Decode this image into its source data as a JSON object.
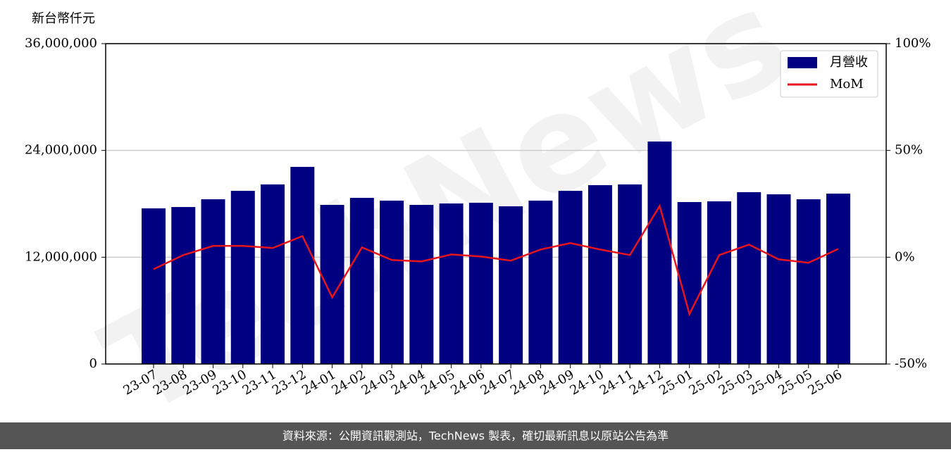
{
  "chart_data": {
    "type": "bar_line",
    "y_label": "新台幣仟元",
    "watermark": "TechNews",
    "footer": "資料來源：公開資訊觀測站，TechNews 製表，確切最新訊息以原站公告為準",
    "categories": [
      "23-07",
      "23-08",
      "23-09",
      "23-10",
      "23-11",
      "23-12",
      "24-01",
      "24-02",
      "24-03",
      "24-04",
      "24-05",
      "24-06",
      "24-07",
      "24-08",
      "24-09",
      "24-10",
      "24-11",
      "24-12",
      "25-01",
      "25-02",
      "25-03",
      "25-04",
      "25-05",
      "25-06"
    ],
    "series": [
      {
        "name": "月營收",
        "type": "bar",
        "color": "#000080",
        "values": [
          17490000,
          17640000,
          18510000,
          19460000,
          20180000,
          22150000,
          17880000,
          18670000,
          18360000,
          17880000,
          18040000,
          18120000,
          17720000,
          18360000,
          19460000,
          20100000,
          20180000,
          25000000,
          18200000,
          18280000,
          19310000,
          19070000,
          18510000,
          19150000
        ]
      },
      {
        "name": "MoM",
        "type": "line",
        "axis": "y2",
        "color": "#e8141b",
        "values": [
          -5.6,
          1.0,
          5.3,
          5.3,
          4.3,
          9.9,
          -18.8,
          4.6,
          -1.3,
          -2.0,
          1.3,
          0.3,
          -1.6,
          3.6,
          6.6,
          3.6,
          1.0,
          24.0,
          -26.6,
          1.0,
          5.9,
          -1.0,
          -2.6,
          3.9
        ]
      }
    ],
    "ylim": [
      0,
      36000000
    ],
    "yticks": [
      0,
      {
        "value": 12000000,
        "label": "12,000,000"
      },
      {
        "value": 24000000,
        "label": "24,000,000"
      },
      {
        "value": 36000000,
        "label": "36,000,000"
      }
    ],
    "y2lim": [
      -50,
      100
    ],
    "y2ticks": [
      {
        "value": -50,
        "label": "-50%"
      },
      {
        "value": 0,
        "label": "0%"
      },
      {
        "value": 50,
        "label": "50%"
      },
      {
        "value": 100,
        "label": "100%"
      }
    ],
    "grid": true,
    "legend": "upper right"
  }
}
